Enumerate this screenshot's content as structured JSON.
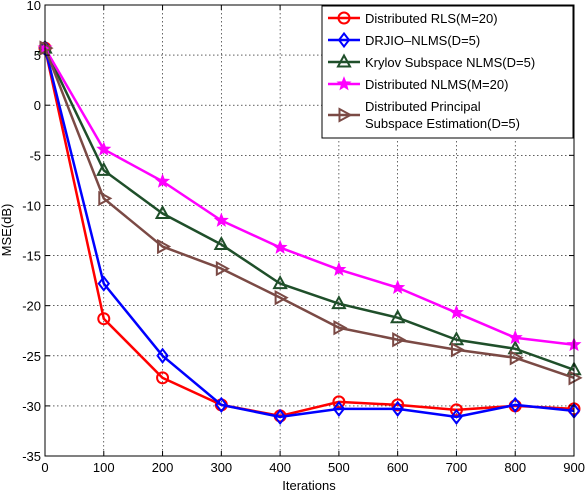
{
  "chart_data": {
    "type": "line",
    "title": "",
    "xlabel": "Iterations",
    "ylabel": "MSE(dB)",
    "x": [
      0,
      100,
      200,
      300,
      400,
      500,
      600,
      700,
      800,
      900
    ],
    "xlim": [
      0,
      900
    ],
    "ylim": [
      -35,
      10
    ],
    "xticks": [
      0,
      100,
      200,
      300,
      400,
      500,
      600,
      700,
      800,
      900
    ],
    "yticks": [
      10,
      5,
      0,
      -5,
      -10,
      -15,
      -20,
      -25,
      -30,
      -35
    ],
    "grid": true,
    "legend_position": "top-right",
    "series": [
      {
        "name": "Distributed RLS(M=20)",
        "color": "#ff0000",
        "marker": "circle",
        "values": [
          5.7,
          -21.3,
          -27.2,
          -29.9,
          -31.0,
          -29.6,
          -29.9,
          -30.4,
          -30.0,
          -30.3
        ]
      },
      {
        "name": "DRJIO–NLMS(D=5)",
        "color": "#0000ff",
        "marker": "diamond",
        "values": [
          5.7,
          -17.8,
          -25.0,
          -29.9,
          -31.1,
          -30.3,
          -30.3,
          -31.1,
          -29.9,
          -30.5
        ]
      },
      {
        "name": "Krylov Subspace NLMS(D=5)",
        "color": "#1f4f2a",
        "marker": "triangle-up",
        "values": [
          5.7,
          -6.5,
          -10.8,
          -13.9,
          -17.8,
          -19.8,
          -21.2,
          -23.4,
          -24.3,
          -26.4
        ]
      },
      {
        "name": "Distributed NLMS(M=20)",
        "color": "#ff00ff",
        "marker": "star",
        "values": [
          5.7,
          -4.4,
          -7.6,
          -11.5,
          -14.2,
          -16.4,
          -18.2,
          -20.7,
          -23.2,
          -23.9
        ]
      },
      {
        "name": "Distributed Principal Subspace Estimation(D=5)",
        "legend_lines": [
          "Distributed Principal",
          "Subspace Estimation(D=5)"
        ],
        "color": "#7b4a45",
        "marker": "triangle-right",
        "values": [
          5.7,
          -9.3,
          -14.1,
          -16.3,
          -19.2,
          -22.2,
          -23.4,
          -24.4,
          -25.2,
          -27.2
        ]
      }
    ]
  }
}
